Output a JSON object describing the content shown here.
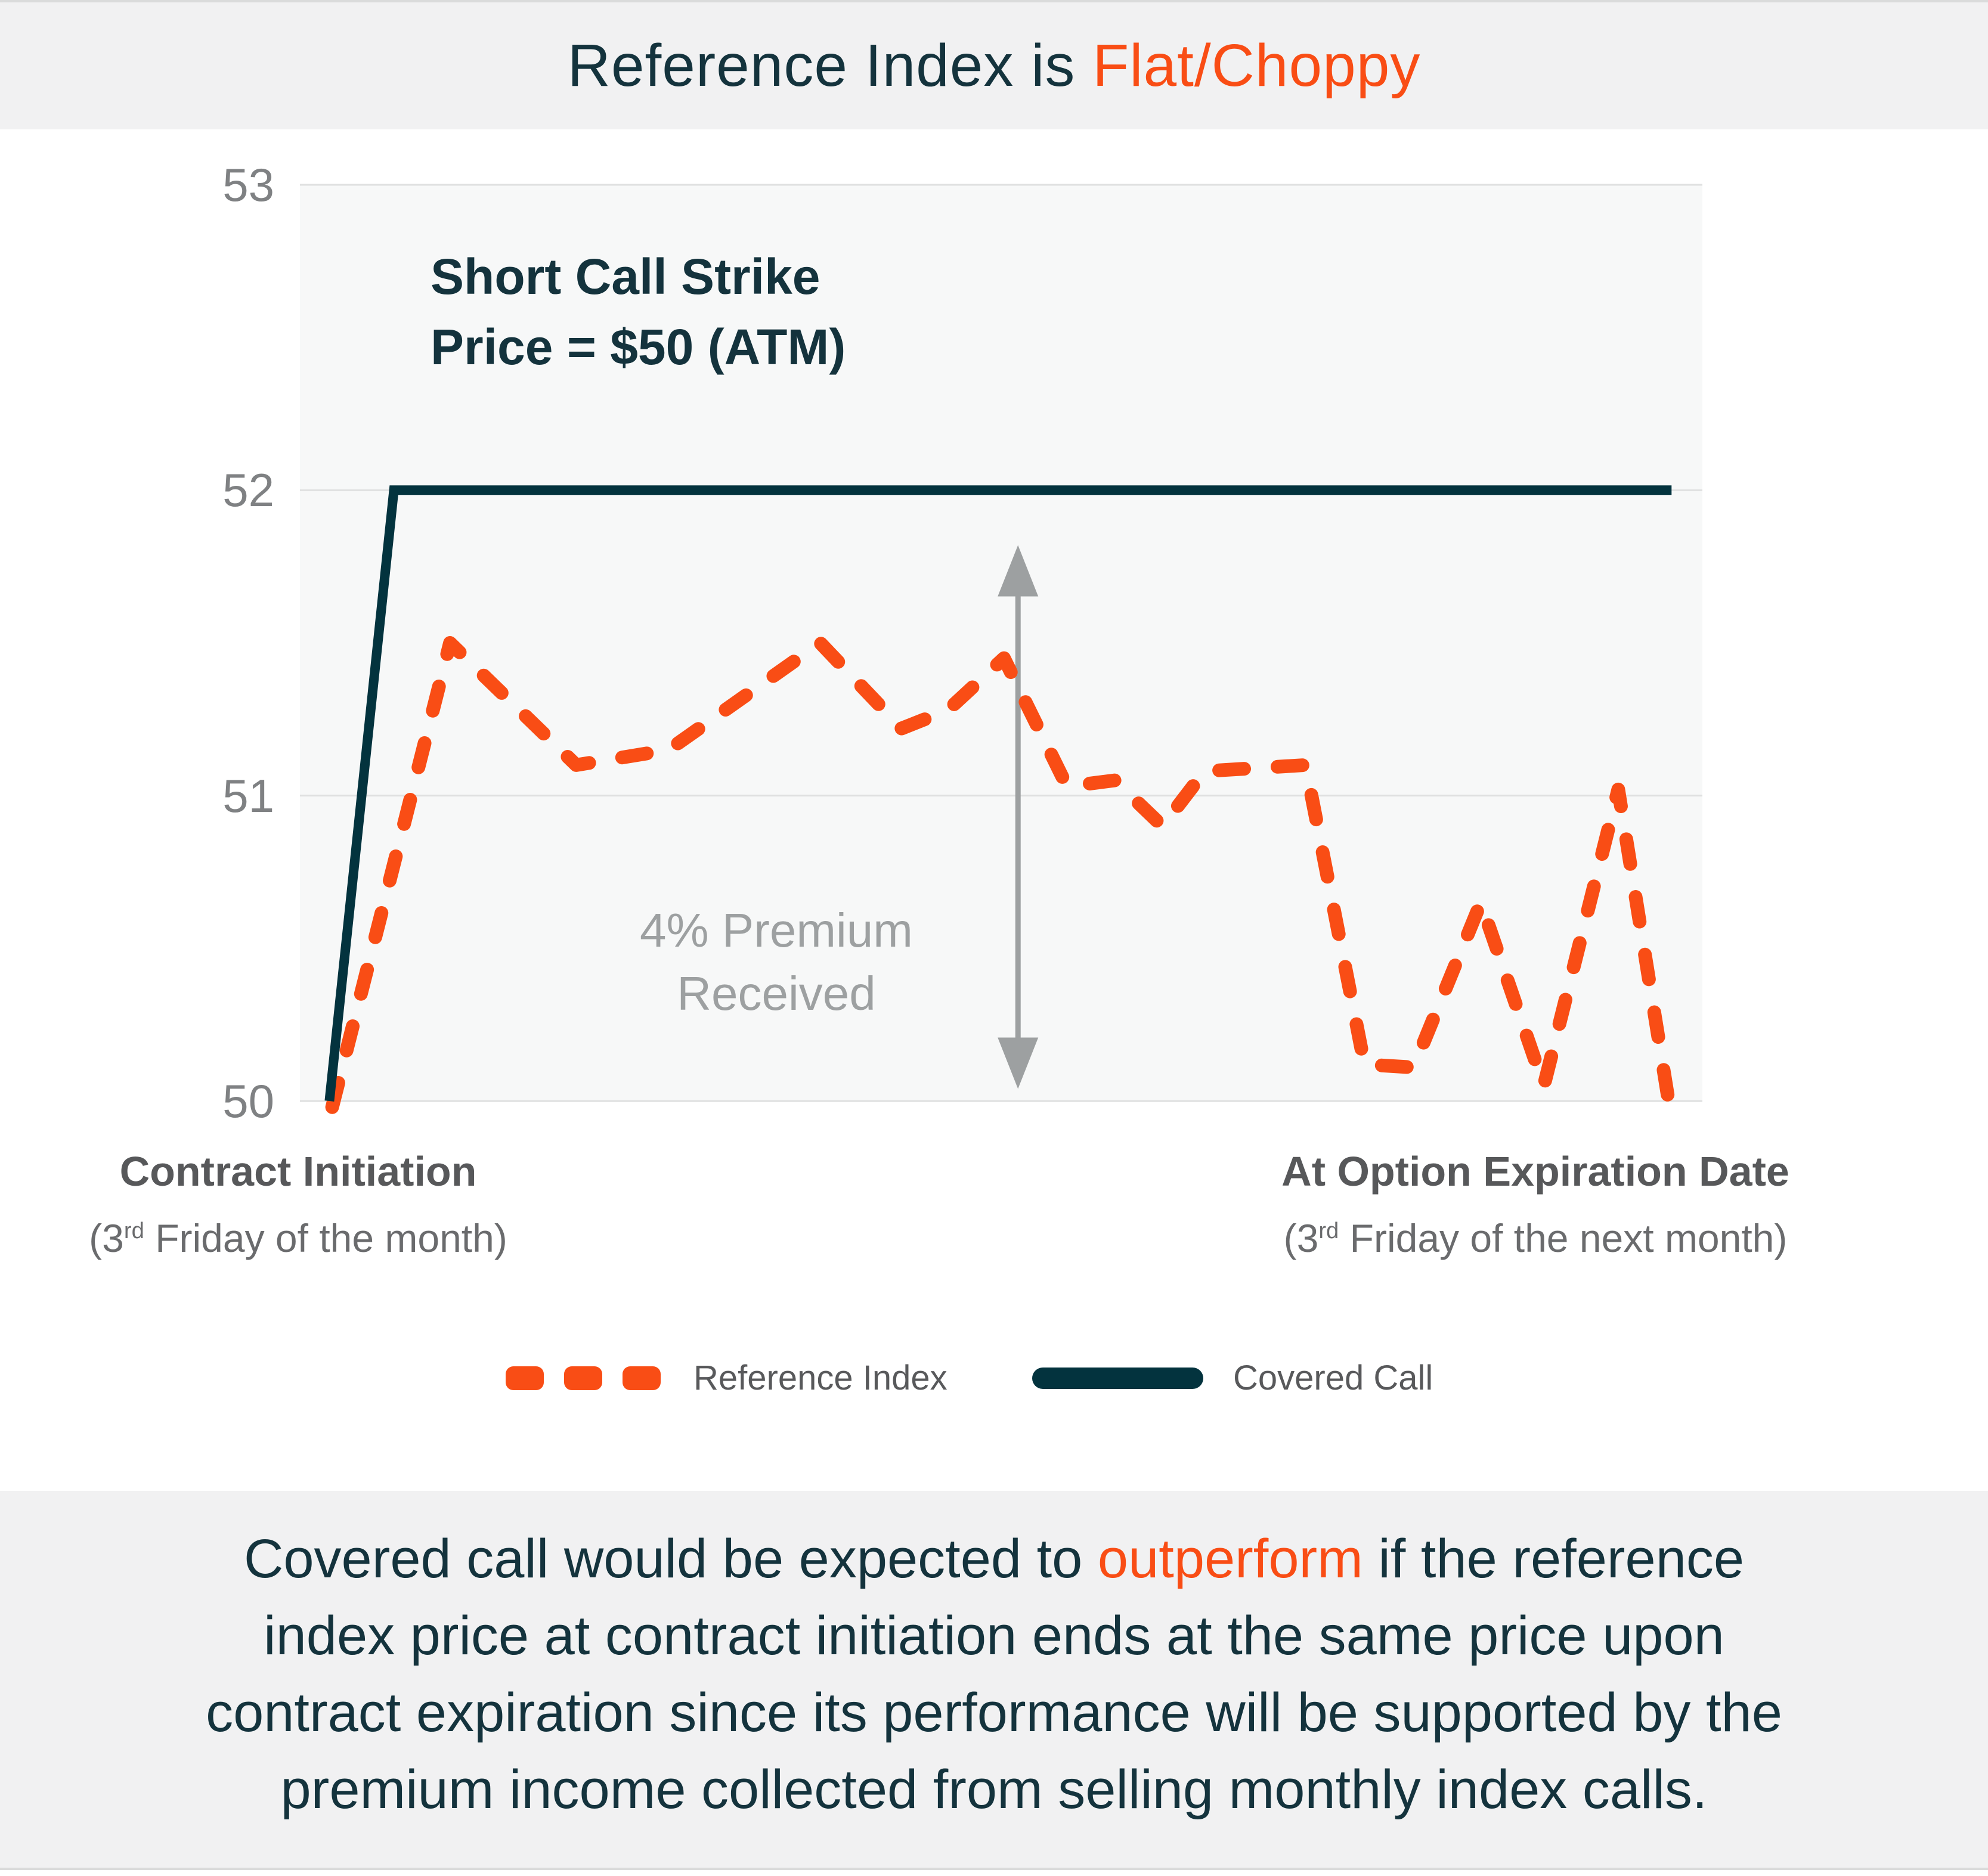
{
  "banner": {
    "title_prefix": "Reference Index is ",
    "title_highlight": "Flat/Choppy"
  },
  "annotations": {
    "strike_line1": "Short Call Strike",
    "strike_line2": "Price = $50 (ATM)",
    "premium_line1": "4% Premium",
    "premium_line2": "Received"
  },
  "x_axis": {
    "left": {
      "title": "Contract Initiation",
      "sub_pre": "(3",
      "sub_sup": "rd",
      "sub_post": " Friday of the month)"
    },
    "right": {
      "title": "At Option Expiration Date",
      "sub_pre": "(3",
      "sub_sup": "rd",
      "sub_post": " Friday of the next month)"
    }
  },
  "legend": {
    "items": [
      {
        "label": "Reference Index",
        "style": "dashed",
        "color": "#F94D15"
      },
      {
        "label": "Covered Call",
        "style": "solid",
        "color": "#03333E"
      }
    ]
  },
  "conclusion": {
    "lines": [
      [
        {
          "text": "Covered call would be expected to "
        },
        {
          "text": "outperform",
          "highlight": true
        },
        {
          "text": " if the reference"
        }
      ],
      [
        {
          "text": "index price at contract initiation ends at the same price upon"
        }
      ],
      [
        {
          "text": "contract expiration since its performance will be supported by the"
        }
      ],
      [
        {
          "text": "premium income collected from selling monthly index calls."
        }
      ]
    ]
  },
  "colors": {
    "accent": "#F94D15",
    "ink": "#14333D",
    "line_dark": "#03333E",
    "grid": "#DFE0E0",
    "muted": "#9DA0A1",
    "tick_text": "#7F8183",
    "axis_label": "#57585A",
    "axis_sublabel": "#6A6B6D",
    "legend_text": "#58595B",
    "band_bg": "#F1F1F2",
    "plot_bg": "#F7F8F8"
  },
  "chart_data": {
    "type": "line",
    "title": "Reference Index is Flat/Choppy",
    "xlabel": "",
    "ylabel": "",
    "ylim": [
      50,
      53
    ],
    "yticks": [
      53,
      52,
      51,
      50
    ],
    "grid": true,
    "legend_position": "bottom",
    "x_range_labels": [
      "Contract Initiation (3rd Friday of the month)",
      "At Option Expiration Date (3rd Friday of the next month)"
    ],
    "series": [
      {
        "name": "Reference Index",
        "style": "dashed",
        "color": "#F94D15",
        "points": [
          [
            2.3,
            49.98
          ],
          [
            10.7,
            51.5
          ],
          [
            19.7,
            51.1
          ],
          [
            26.3,
            51.15
          ],
          [
            37.1,
            51.5
          ],
          [
            42.9,
            51.22
          ],
          [
            46.2,
            51.28
          ],
          [
            50.2,
            51.45
          ],
          [
            54.7,
            51.03
          ],
          [
            58.1,
            51.05
          ],
          [
            61.5,
            50.9
          ],
          [
            64.5,
            51.08
          ],
          [
            71.7,
            51.1
          ],
          [
            75.9,
            50.12
          ],
          [
            79.4,
            50.11
          ],
          [
            84.2,
            50.65
          ],
          [
            88.7,
            50.05
          ],
          [
            94.0,
            51.02
          ],
          [
            97.7,
            49.97
          ]
        ]
      },
      {
        "name": "Covered Call",
        "style": "solid",
        "color": "#03333E",
        "points": [
          [
            2.1,
            50.0
          ],
          [
            6.7,
            52.0
          ],
          [
            97.8,
            52.0
          ]
        ]
      }
    ],
    "annotation_arrow": {
      "x_pct": 51.2,
      "from_value": 51.82,
      "to_value": 50.04,
      "label": "4% Premium Received"
    },
    "strike_annotation": "Short Call Strike Price = $50 (ATM)"
  }
}
